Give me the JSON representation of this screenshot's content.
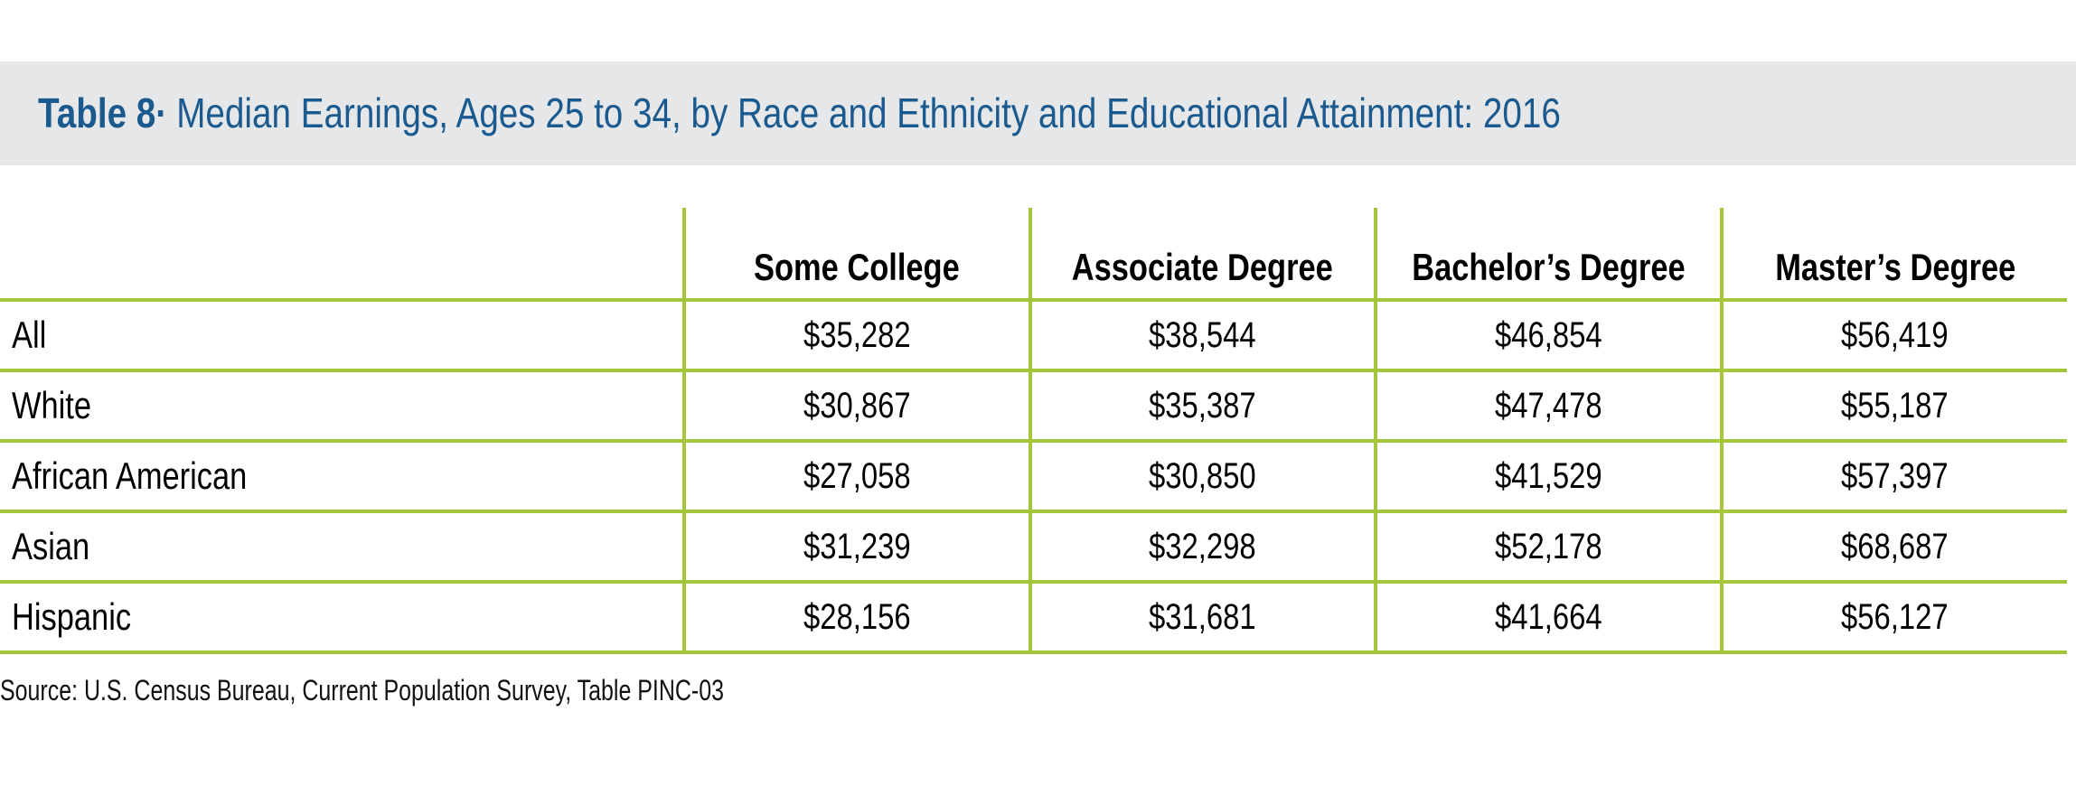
{
  "chart_data": {
    "type": "table",
    "title_label": "Table 8",
    "title_separator": "·",
    "title": "Median Earnings, Ages 25 to 34, by Race and Ethnicity and Educational Attainment: 2016",
    "columns": [
      "",
      "Some College",
      "Associate Degree",
      "Bachelor’s Degree",
      "Master’s Degree"
    ],
    "rows": [
      {
        "label": "All",
        "values": [
          "$35,282",
          "$38,544",
          "$46,854",
          "$56,419"
        ]
      },
      {
        "label": "White",
        "values": [
          "$30,867",
          "$35,387",
          "$47,478",
          "$55,187"
        ]
      },
      {
        "label": "African American",
        "values": [
          "$27,058",
          "$30,850",
          "$41,529",
          "$57,397"
        ]
      },
      {
        "label": "Asian",
        "values": [
          "$31,239",
          "$32,298",
          "$52,178",
          "$68,687"
        ]
      },
      {
        "label": "Hispanic",
        "values": [
          "$28,156",
          "$31,681",
          "$41,664",
          "$56,127"
        ]
      }
    ],
    "source": "Source: U.S. Census Bureau, Current Population Survey, Table PINC-03"
  },
  "colors": {
    "title": "#1b5a8f",
    "title_band": "#e6e7e8",
    "rule": "#a5c63b"
  }
}
